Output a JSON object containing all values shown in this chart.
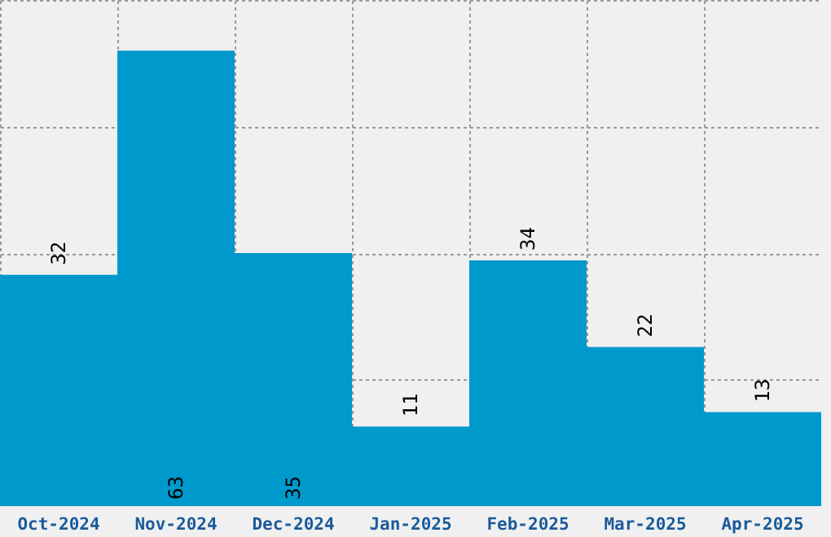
{
  "chart_data": {
    "type": "bar",
    "categories": [
      "Oct-2024",
      "Nov-2024",
      "Dec-2024",
      "Jan-2025",
      "Feb-2025",
      "Mar-2025",
      "Apr-2025"
    ],
    "values": [
      32,
      63,
      35,
      11,
      34,
      22,
      13
    ],
    "color": "#0099cc",
    "ylim": [
      0,
      70
    ],
    "yticks": [
      {
        "value": 17.5,
        "label": null
      },
      {
        "value": 35,
        "label": null
      },
      {
        "value": 52.5,
        "label": null
      },
      {
        "value": 70,
        "label": null
      }
    ],
    "tick_labels": "x",
    "grid": true,
    "data_labels": true
  }
}
